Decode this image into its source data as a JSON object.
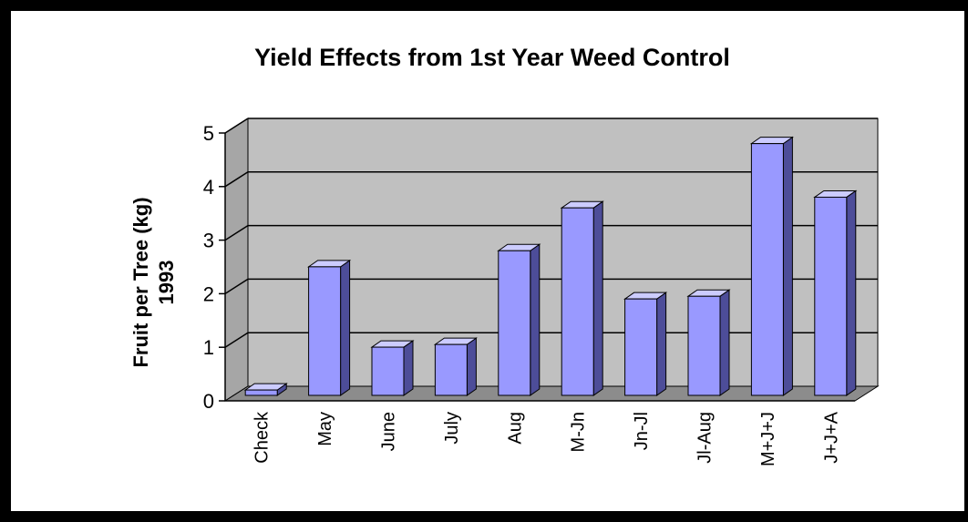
{
  "chart_data": {
    "type": "bar",
    "style": "3d-column",
    "title": "Yield Effects from 1st Year Weed Control",
    "ylabel": [
      "Fruit per Tree (kg)",
      "1993"
    ],
    "xlabel": "",
    "categories": [
      "Check",
      "May",
      "June",
      "July",
      "Aug",
      "M-Jn",
      "Jn-Jl",
      "Jl-Aug",
      "M+J+J",
      "J+J+A"
    ],
    "values": [
      0.1,
      2.4,
      0.9,
      0.95,
      2.7,
      3.5,
      1.8,
      1.85,
      4.7,
      3.7
    ],
    "yticks": [
      "0",
      "1",
      "2",
      "3",
      "4",
      "5"
    ],
    "ylim": [
      0,
      5
    ],
    "grid": true,
    "legend": "none",
    "colors": {
      "bar_front": "#9999ff",
      "bar_top": "#ccccff",
      "bar_side": "#4d4d99",
      "back_wall": "#c0c0c0",
      "side_wall": "#a6a6a6",
      "floor": "#8c8c8c",
      "gridline": "#000000",
      "frame": "#000000"
    }
  }
}
